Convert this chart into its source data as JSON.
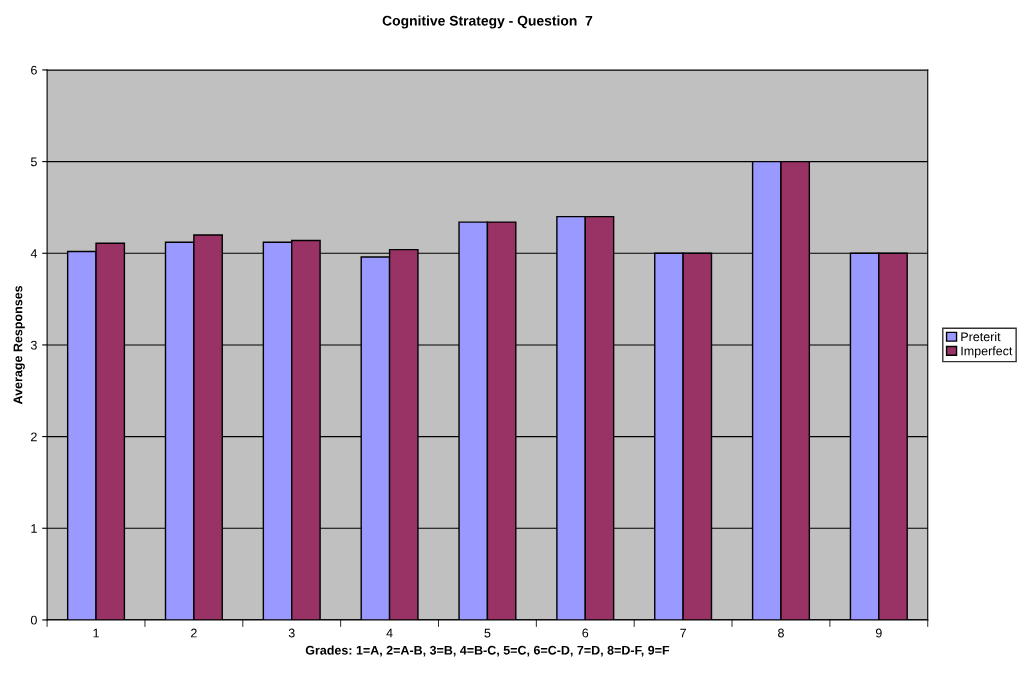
{
  "chart_data": {
    "type": "bar",
    "title": "Cognitive Strategy - Question  7",
    "xlabel": "Grades: 1=A, 2=A-B, 3=B, 4=B-C, 5=C, 6=C-D, 7=D, 8=D-F, 9=F",
    "ylabel": "Average Responses",
    "categories": [
      "1",
      "2",
      "3",
      "4",
      "5",
      "6",
      "7",
      "8",
      "9"
    ],
    "series": [
      {
        "name": "Preterit",
        "color": "#9999ff",
        "values": [
          4.02,
          4.12,
          4.12,
          3.96,
          4.34,
          4.4,
          4.0,
          5.0,
          4.0
        ]
      },
      {
        "name": "Imperfect",
        "color": "#993366",
        "values": [
          4.11,
          4.2,
          4.14,
          4.04,
          4.34,
          4.4,
          4.0,
          5.0,
          4.0
        ]
      }
    ],
    "ylim": [
      0,
      6
    ],
    "yticks": [
      0,
      1,
      2,
      3,
      4,
      5,
      6
    ],
    "grid": "y",
    "legend": "right"
  }
}
